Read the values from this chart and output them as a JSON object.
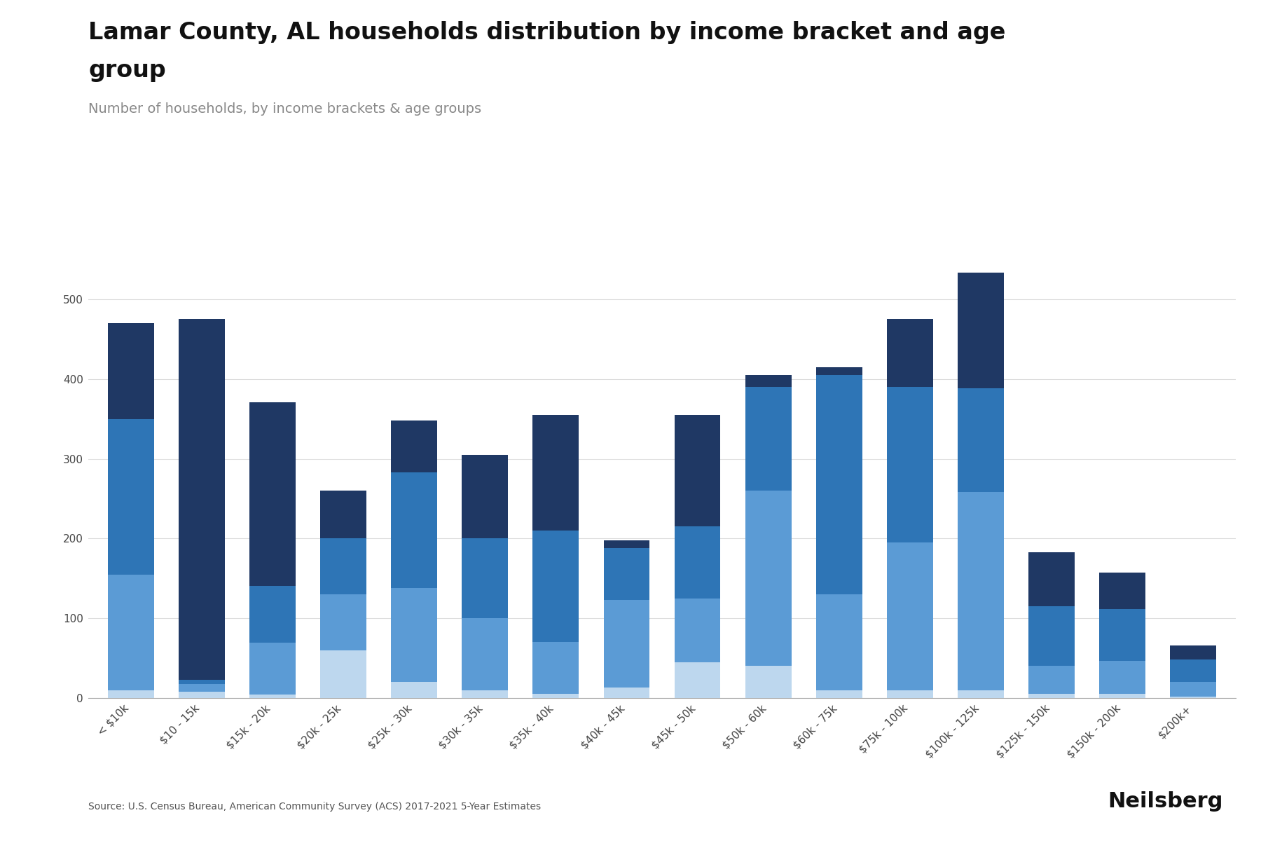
{
  "title_line1": "Lamar County, AL households distribution by income bracket and age",
  "title_line2": "group",
  "subtitle": "Number of households, by income brackets & age groups",
  "source": "Source: U.S. Census Bureau, American Community Survey (ACS) 2017-2021 5-Year Estimates",
  "branding": "Neilsberg",
  "categories": [
    "< $10k",
    "$10 - 15k",
    "$15k - 20k",
    "$20k - 25k",
    "$25k - 30k",
    "$30k - 35k",
    "$35k - 40k",
    "$40k - 45k",
    "$45k - 50k",
    "$50k - 60k",
    "$60k - 75k",
    "$75k - 100k",
    "$100k - 125k",
    "$125k - 150k",
    "$150k - 200k",
    "$200k+"
  ],
  "series": {
    "Under 25 years": [
      10,
      8,
      4,
      60,
      20,
      10,
      5,
      13,
      45,
      40,
      10,
      10,
      10,
      5,
      5,
      2
    ],
    "25 to 44 years": [
      145,
      10,
      65,
      70,
      118,
      90,
      65,
      110,
      80,
      220,
      120,
      185,
      248,
      35,
      42,
      18
    ],
    "45 to 64 years": [
      195,
      5,
      72,
      70,
      145,
      100,
      140,
      65,
      90,
      130,
      275,
      195,
      130,
      75,
      65,
      28
    ],
    "65 years and over": [
      120,
      452,
      230,
      60,
      65,
      105,
      145,
      10,
      140,
      15,
      10,
      85,
      145,
      68,
      45,
      18
    ]
  },
  "colors": {
    "Under 25 years": "#bdd7ee",
    "25 to 44 years": "#5b9bd5",
    "45 to 64 years": "#2e75b6",
    "65 years and over": "#1f3864"
  },
  "ylim": [
    0,
    580
  ],
  "yticks": [
    0,
    100,
    200,
    300,
    400,
    500
  ],
  "background_color": "#ffffff",
  "title_fontsize": 24,
  "subtitle_fontsize": 14,
  "tick_fontsize": 11,
  "legend_fontsize": 12,
  "source_fontsize": 10,
  "brand_fontsize": 22
}
